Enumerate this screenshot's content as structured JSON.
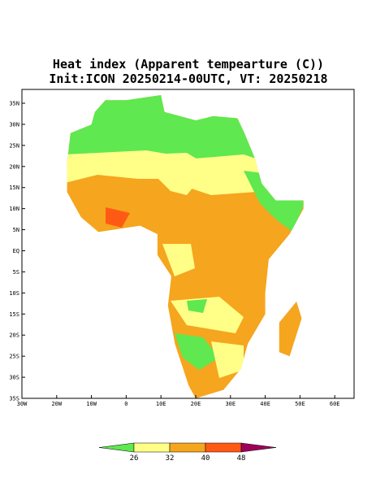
{
  "title": {
    "line1": "Heat index (Apparent tempearture (C))",
    "line2": "Init:ICON 20250214-00UTC, VT: 20250218"
  },
  "map": {
    "lat_labels": [
      "35N",
      "30N",
      "25N",
      "20N",
      "15N",
      "10N",
      "5N",
      "EQ",
      "5S",
      "10S",
      "15S",
      "20S",
      "25S",
      "30S",
      "35S"
    ],
    "lon_labels": [
      "30W",
      "20W",
      "10W",
      "0",
      "10E",
      "20E",
      "30E",
      "40E",
      "50E",
      "60E"
    ]
  },
  "colorbar": {
    "levels": [
      26,
      32,
      40,
      48
    ],
    "colors": [
      "#5fe84f",
      "#ffff88",
      "#f5a51e",
      "#ff5a14",
      "#a0005a"
    ]
  }
}
